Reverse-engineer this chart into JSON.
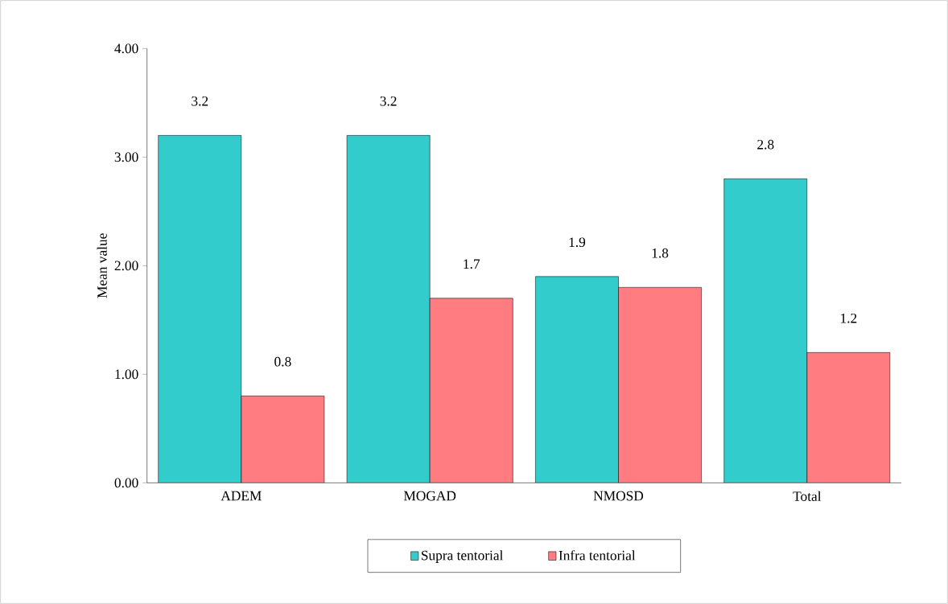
{
  "chart_data": {
    "type": "bar",
    "ylabel": "Mean value",
    "categories": [
      "ADEM",
      "MOGAD",
      "NMOSD",
      "Total"
    ],
    "series": [
      {
        "name": "Supra tentorial",
        "color": "#33cccc",
        "values": [
          3.2,
          3.2,
          1.9,
          2.8
        ]
      },
      {
        "name": "Infra tentorial",
        "color": "#ff7c80",
        "values": [
          0.8,
          1.7,
          1.8,
          1.2
        ]
      }
    ],
    "ylim": [
      0,
      4
    ],
    "yticks": [
      {
        "value": 0,
        "label": "0.00"
      },
      {
        "value": 1,
        "label": "1.00"
      },
      {
        "value": 2,
        "label": "2.00"
      },
      {
        "value": 3,
        "label": "3.00"
      },
      {
        "value": 4,
        "label": "4.00"
      }
    ],
    "data_labels": true,
    "grid": false,
    "legend": "bottom"
  }
}
